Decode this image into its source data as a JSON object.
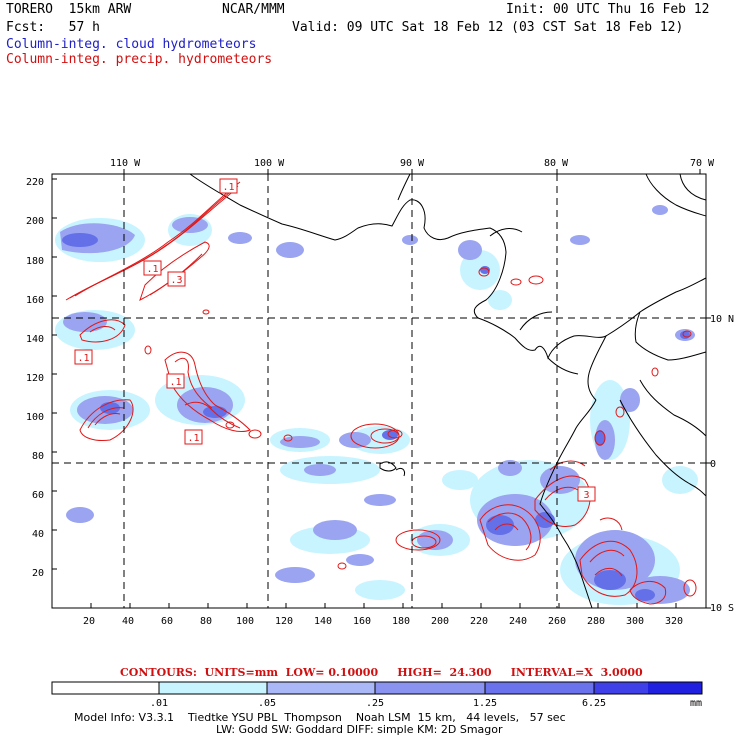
{
  "header": {
    "model": "TORERO  15km ARW",
    "center": "NCAR/MMM",
    "init": "Init: 00 UTC Thu 16 Feb 12",
    "fcst": "Fcst:   57 h",
    "valid": "Valid: 09 UTC Sat 18 Feb 12 (03 CST Sat 18 Feb 12)",
    "legend_cloud": "Column-integ. cloud hydrometeors",
    "legend_precip": "Column-integ. precip. hydrometeors"
  },
  "map": {
    "top_ticks": [
      "110 W",
      "100 W",
      "90 W",
      "80 W",
      "70 W"
    ],
    "right_ticks": [
      "10 N",
      "0",
      "10 S"
    ],
    "left_ticks": [
      "220",
      "200",
      "180",
      "160",
      "140",
      "120",
      "100",
      "80",
      "60",
      "40",
      "20"
    ],
    "bottom_ticks": [
      "20",
      "40",
      "60",
      "80",
      "100",
      "120",
      "140",
      "160",
      "180",
      "200",
      "220",
      "240",
      "260",
      "280",
      "300",
      "320"
    ],
    "contour_labels": [
      ".1",
      ".1",
      ".3",
      ".1",
      ".1",
      ".1",
      "3"
    ],
    "colors": {
      "cloud_light": "#c8f4ff",
      "cloud_mid": "#9aa4f0",
      "cloud_dark": "#6470e8",
      "precip": "#e01818"
    }
  },
  "contour_info": {
    "label": "CONTOURS:  UNITS=mm  LOW= 0.10000     HIGH=  24.300     INTERVAL=X  3.0000"
  },
  "colorbar": {
    "ticks": [
      ".01",
      ".05",
      ".25",
      "1.25",
      "6.25"
    ],
    "unit": "mm",
    "colors": [
      "#ffffff",
      "#c8f4ff",
      "#aab8f8",
      "#8a94f0",
      "#6a72ec",
      "#4040e8",
      "#2020e0"
    ]
  },
  "model_info": {
    "line1": "Model Info: V3.3.1    Tiedtke YSU PBL  Thompson    Noah LSM  15 km,   44 levels,   57 sec",
    "line2": "LW: Godd SW: Goddard DIFF: simple KM: 2D Smagor"
  }
}
